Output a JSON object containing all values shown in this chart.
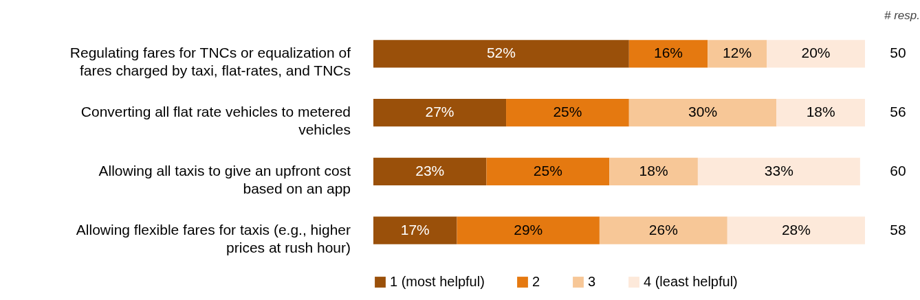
{
  "chart_data": {
    "type": "bar",
    "orientation": "horizontal",
    "stacked": true,
    "categories": [
      "Regulating fares for TNCs or equalization of fares charged by taxi, flat-rates, and TNCs",
      "Converting all flat rate vehicles to metered vehicles",
      "Allowing all taxis to give an upfront cost based on an app",
      "Allowing flexible fares for taxis (e.g., higher prices at rush hour)"
    ],
    "series": [
      {
        "name": "1 (most helpful)",
        "color": "#9a500a",
        "values": [
          52,
          27,
          23,
          17
        ],
        "value_labels": [
          "52%",
          "27%",
          "23%",
          "17%"
        ]
      },
      {
        "name": "2",
        "color": "#e57910",
        "values": [
          16,
          25,
          25,
          29
        ],
        "value_labels": [
          "16%",
          "25%",
          "25%",
          "29%"
        ]
      },
      {
        "name": "3",
        "color": "#f7c797",
        "values": [
          12,
          30,
          18,
          26
        ],
        "value_labels": [
          "12%",
          "30%",
          "18%",
          "26%"
        ]
      },
      {
        "name": "4 (least helpful)",
        "color": "#fde9da",
        "values": [
          20,
          18,
          33,
          28
        ],
        "value_labels": [
          "20%",
          "18%",
          "33%",
          "28%"
        ]
      }
    ],
    "annotations": [
      "# resp.",
      "50",
      "56",
      "60",
      "58"
    ],
    "legend": "bottom"
  }
}
